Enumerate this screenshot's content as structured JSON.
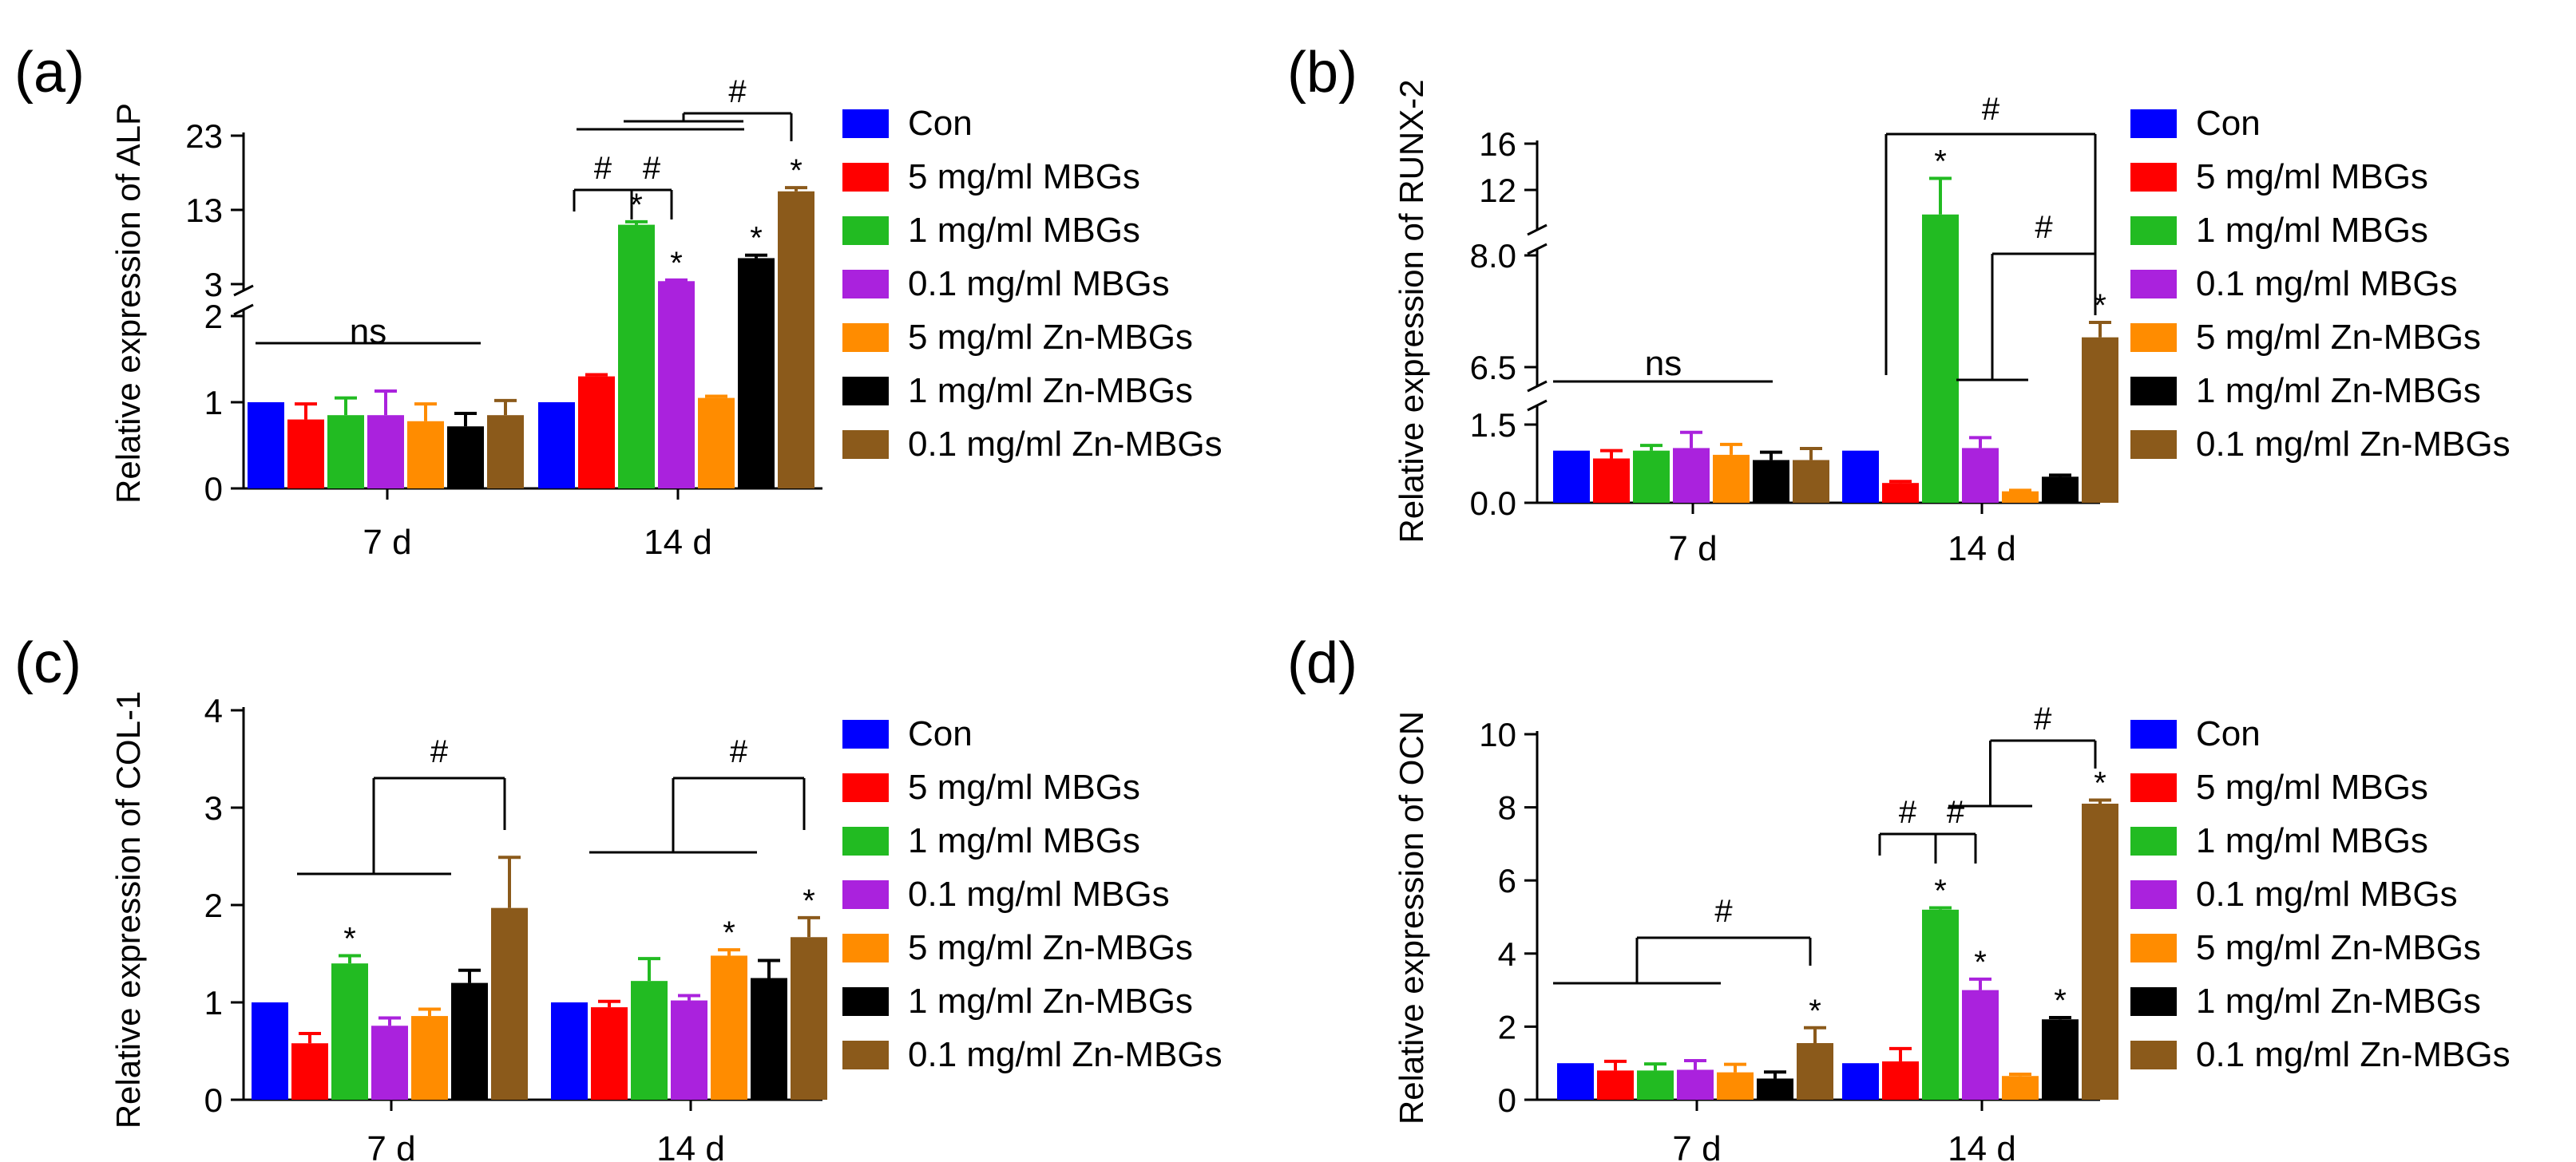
{
  "legend": [
    {
      "label": "Con",
      "color": "#0000ff"
    },
    {
      "label": "5 mg/ml MBGs",
      "color": "#ff0000"
    },
    {
      "label": "1 mg/ml MBGs",
      "color": "#22bb22"
    },
    {
      "label": "0.1 mg/ml MBGs",
      "color": "#aa22dd"
    },
    {
      "label": "5 mg/ml Zn-MBGs",
      "color": "#ff8c00"
    },
    {
      "label": "1 mg/ml Zn-MBGs",
      "color": "#000000"
    },
    {
      "label": "0.1 mg/ml Zn-MBGs",
      "color": "#8b5a1b"
    }
  ],
  "chart_data": [
    {
      "panel": "(a)",
      "type": "bar",
      "ylabel": "Relative expression of ALP",
      "categories": [
        "7 d",
        "14 d"
      ],
      "ylim_lower": [
        0,
        2
      ],
      "ylim_upper": [
        3,
        23
      ],
      "yticks_lower": [
        "0",
        "1",
        "2"
      ],
      "yticks_upper": [
        "3",
        "13",
        "23"
      ],
      "series": [
        {
          "name": "Con",
          "values": [
            1.0,
            1.0
          ],
          "errors": [
            0,
            0
          ]
        },
        {
          "name": "5 mg/ml MBGs",
          "values": [
            0.8,
            1.3
          ],
          "errors": [
            0.18,
            0.02
          ]
        },
        {
          "name": "1 mg/ml MBGs",
          "values": [
            0.85,
            11
          ],
          "errors": [
            0.2,
            0.4
          ]
        },
        {
          "name": "0.1 mg/ml MBGs",
          "values": [
            0.85,
            3.4
          ],
          "errors": [
            0.28,
            0.15
          ]
        },
        {
          "name": "5 mg/ml Zn-MBGs",
          "values": [
            0.78,
            1.05
          ],
          "errors": [
            0.2,
            0.02
          ]
        },
        {
          "name": "1 mg/ml Zn-MBGs",
          "values": [
            0.72,
            6.5
          ],
          "errors": [
            0.15,
            0.4
          ]
        },
        {
          "name": "0.1 mg/ml Zn-MBGs",
          "values": [
            0.85,
            15.5
          ],
          "errors": [
            0.17,
            0.5
          ]
        }
      ],
      "annotations": {
        "ns": "ns",
        "star": "*",
        "hash": "#"
      }
    },
    {
      "panel": "(b)",
      "type": "bar",
      "ylabel": "Relative expression of RUNX-2",
      "categories": [
        "7 d",
        "14 d"
      ],
      "ylim_lower": [
        0,
        1.5
      ],
      "ylim_mid": [
        6.5,
        8.0
      ],
      "ylim_upper": [
        12,
        16
      ],
      "yticks_lower": [
        "0.0",
        "1.5"
      ],
      "yticks_mid": [
        "6.5",
        "8.0"
      ],
      "yticks_upper": [
        "12",
        "16"
      ],
      "series": [
        {
          "name": "Con",
          "values": [
            1.0,
            1.0
          ],
          "errors": [
            0,
            0
          ]
        },
        {
          "name": "5 mg/ml MBGs",
          "values": [
            0.85,
            0.38
          ],
          "errors": [
            0.15,
            0.03
          ]
        },
        {
          "name": "1 mg/ml MBGs",
          "values": [
            1.0,
            10.5
          ],
          "errors": [
            0.1,
            2.5
          ]
        },
        {
          "name": "0.1 mg/ml MBGs",
          "values": [
            1.05,
            1.05
          ],
          "errors": [
            0.3,
            0.2
          ]
        },
        {
          "name": "5 mg/ml Zn-MBGs",
          "values": [
            0.92,
            0.22
          ],
          "errors": [
            0.2,
            0.02
          ]
        },
        {
          "name": "1 mg/ml Zn-MBGs",
          "values": [
            0.82,
            0.5
          ],
          "errors": [
            0.15,
            0.03
          ]
        },
        {
          "name": "0.1 mg/ml Zn-MBGs",
          "values": [
            0.82,
            6.9
          ],
          "errors": [
            0.22,
            0.2
          ]
        }
      ],
      "annotations": {
        "ns": "ns",
        "star": "*",
        "hash": "#"
      }
    },
    {
      "panel": "(c)",
      "type": "bar",
      "ylabel": "Relative expression of COL-1",
      "categories": [
        "7 d",
        "14 d"
      ],
      "ylim": [
        0,
        4
      ],
      "yticks": [
        "0",
        "1",
        "2",
        "3",
        "4"
      ],
      "series": [
        {
          "name": "Con",
          "values": [
            1.0,
            1.0
          ],
          "errors": [
            0,
            0
          ]
        },
        {
          "name": "5 mg/ml MBGs",
          "values": [
            0.58,
            0.95
          ],
          "errors": [
            0.1,
            0.06
          ]
        },
        {
          "name": "1 mg/ml MBGs",
          "values": [
            1.4,
            1.22
          ],
          "errors": [
            0.08,
            0.23
          ]
        },
        {
          "name": "0.1 mg/ml MBGs",
          "values": [
            0.76,
            1.02
          ],
          "errors": [
            0.08,
            0.05
          ]
        },
        {
          "name": "5 mg/ml Zn-MBGs",
          "values": [
            0.86,
            1.48
          ],
          "errors": [
            0.07,
            0.06
          ]
        },
        {
          "name": "1 mg/ml Zn-MBGs",
          "values": [
            1.2,
            1.25
          ],
          "errors": [
            0.13,
            0.18
          ]
        },
        {
          "name": "0.1 mg/ml Zn-MBGs",
          "values": [
            1.97,
            1.67
          ],
          "errors": [
            0.52,
            0.2
          ]
        }
      ],
      "annotations": {
        "star": "*",
        "hash": "#"
      }
    },
    {
      "panel": "(d)",
      "type": "bar",
      "ylabel": "Relative expression of OCN",
      "categories": [
        "7 d",
        "14 d"
      ],
      "ylim": [
        0,
        10
      ],
      "yticks": [
        "0",
        "2",
        "4",
        "6",
        "8",
        "10"
      ],
      "series": [
        {
          "name": "Con",
          "values": [
            1.0,
            1.0
          ],
          "errors": [
            0,
            0
          ]
        },
        {
          "name": "5 mg/ml MBGs",
          "values": [
            0.8,
            1.05
          ],
          "errors": [
            0.25,
            0.35
          ]
        },
        {
          "name": "1 mg/ml MBGs",
          "values": [
            0.8,
            5.2
          ],
          "errors": [
            0.18,
            0.05
          ]
        },
        {
          "name": "0.1 mg/ml MBGs",
          "values": [
            0.82,
            3.0
          ],
          "errors": [
            0.25,
            0.3
          ]
        },
        {
          "name": "5 mg/ml Zn-MBGs",
          "values": [
            0.75,
            0.65
          ],
          "errors": [
            0.22,
            0.05
          ]
        },
        {
          "name": "1 mg/ml Zn-MBGs",
          "values": [
            0.58,
            2.2
          ],
          "errors": [
            0.18,
            0.05
          ]
        },
        {
          "name": "0.1 mg/ml Zn-MBGs",
          "values": [
            1.55,
            8.1
          ],
          "errors": [
            0.42,
            0.1
          ]
        }
      ],
      "annotations": {
        "star": "*",
        "hash": "#"
      }
    }
  ]
}
